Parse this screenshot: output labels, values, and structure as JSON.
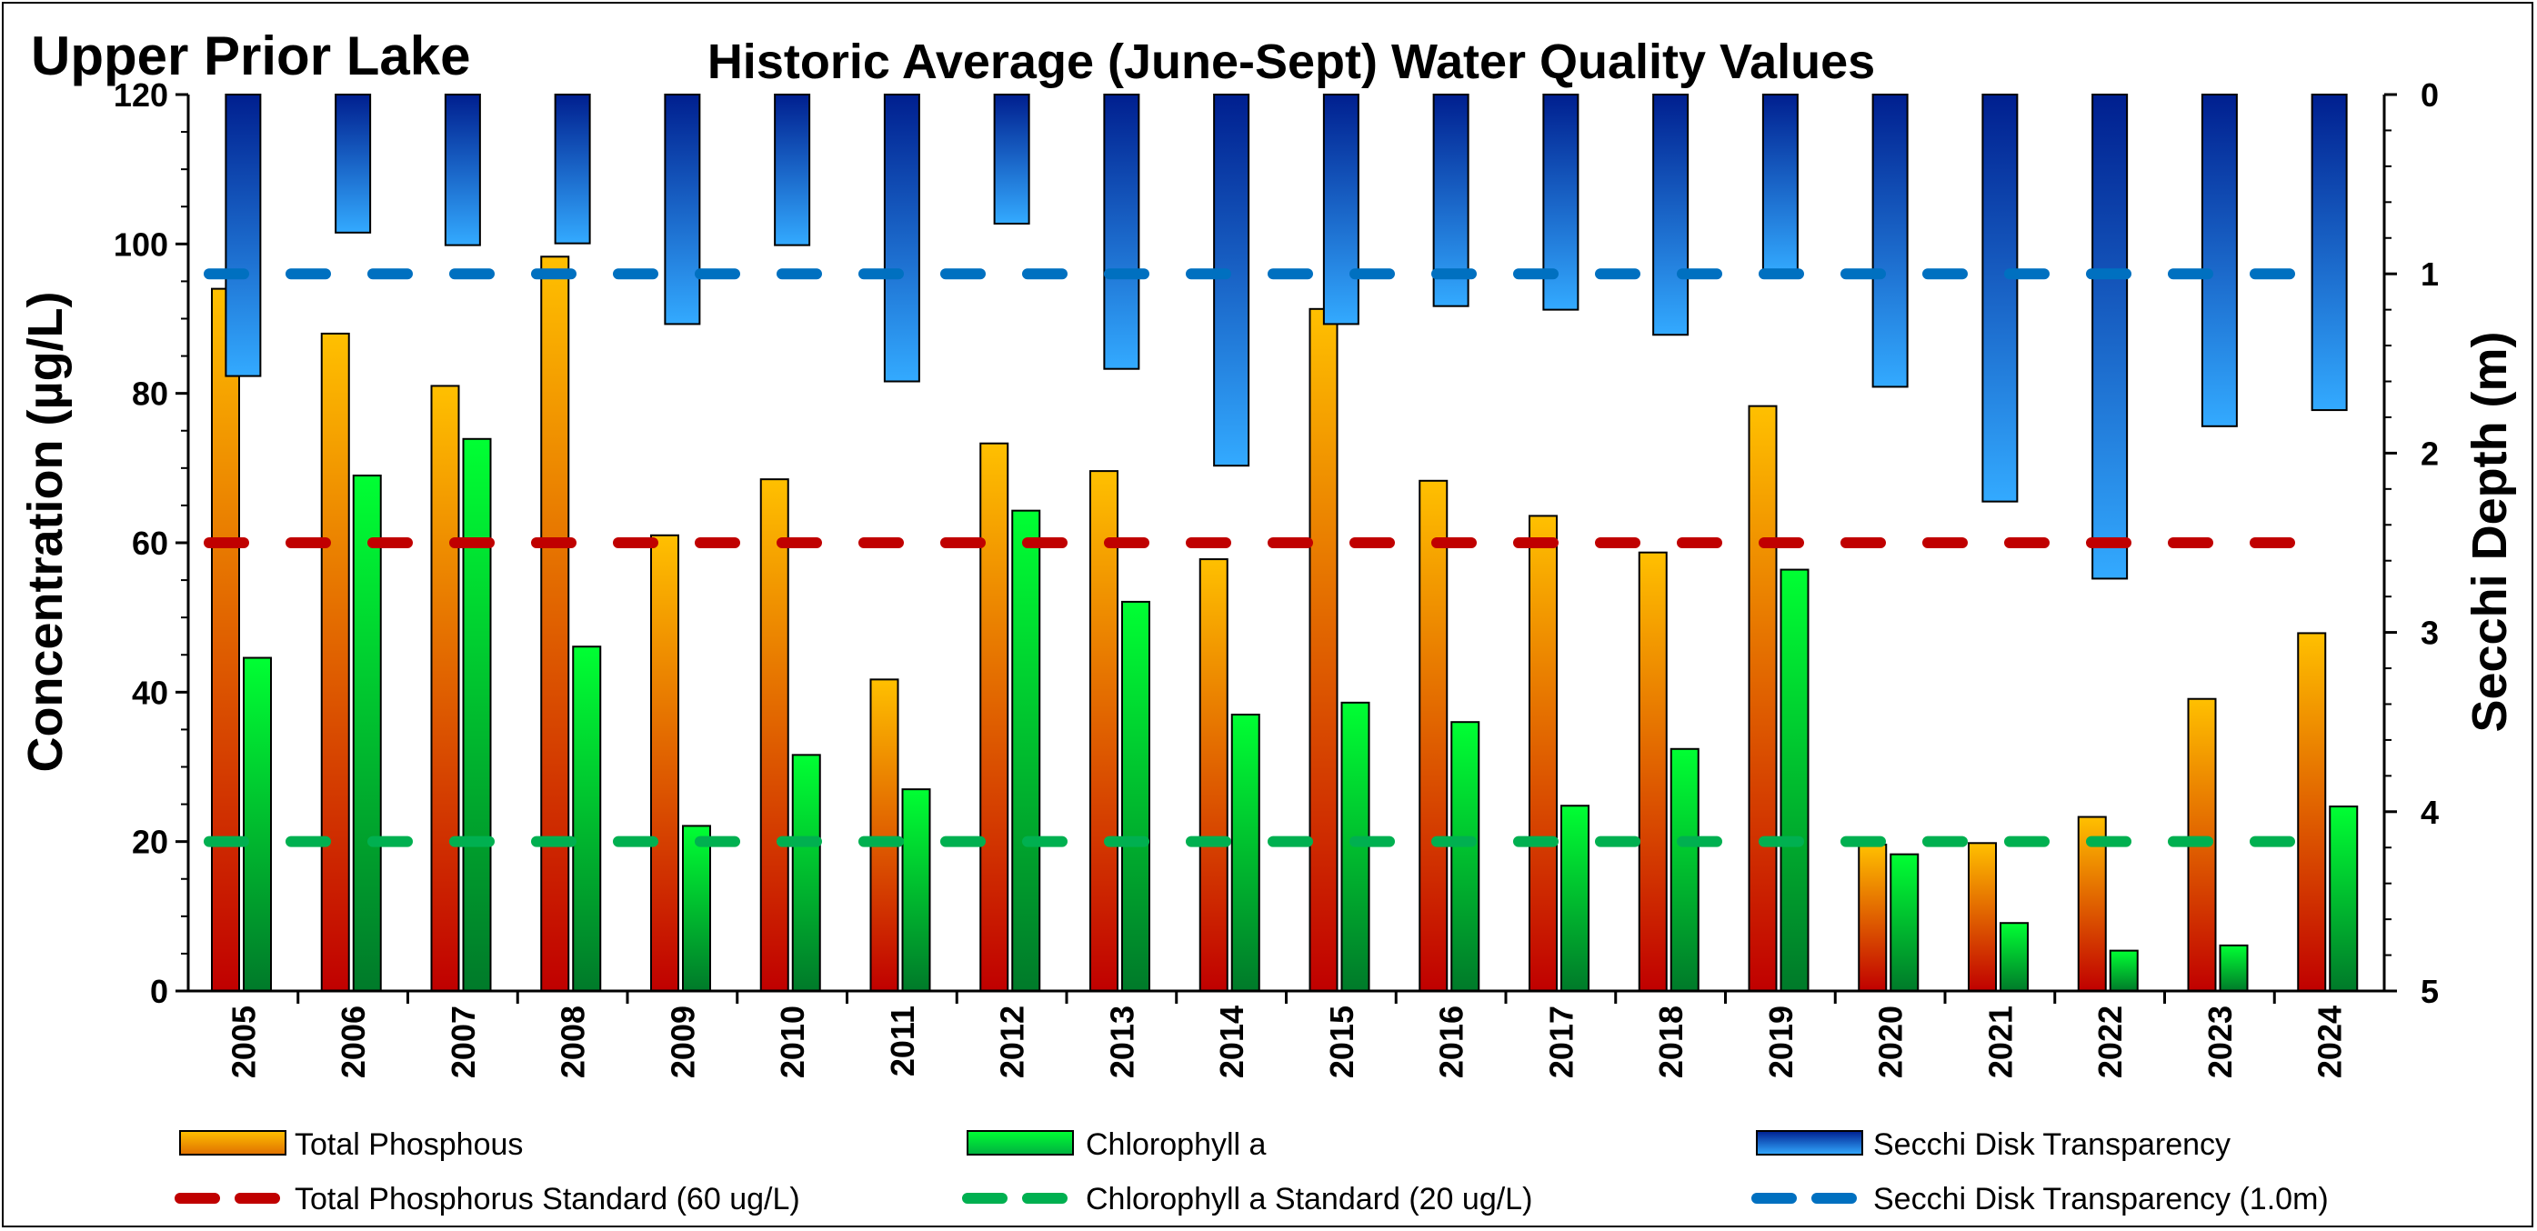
{
  "chart_data": {
    "type": "bar",
    "title": "Historic Average (June-Sept) Water Quality Values",
    "lake_name": "Upper Prior Lake",
    "categories": [
      "2005",
      "2006",
      "2007",
      "2008",
      "2009",
      "2010",
      "2011",
      "2012",
      "2013",
      "2014",
      "2015",
      "2016",
      "2017",
      "2018",
      "2019",
      "2020",
      "2021",
      "2022",
      "2023",
      "2024"
    ],
    "ylabel": "Concentration (µg/L)",
    "y2label": "Secchi Depth (m)",
    "ylim": [
      0,
      120
    ],
    "y2lim": [
      0,
      5
    ],
    "y2_inverted": true,
    "yticks": [
      "0",
      "20",
      "40",
      "60",
      "80",
      "100",
      "120"
    ],
    "y2ticks": [
      "0",
      "1",
      "2",
      "3",
      "4",
      "5"
    ],
    "series": [
      {
        "name": "Total Phosphous",
        "axis": "left",
        "color_top": "#FFC000",
        "color_bottom": "#C00000",
        "values": [
          94,
          88,
          81,
          98.3,
          61,
          68.5,
          41.7,
          73.3,
          69.6,
          57.8,
          91.3,
          68.3,
          63.6,
          58.7,
          78.3,
          19.6,
          19.8,
          23.3,
          39.1,
          47.9
        ]
      },
      {
        "name": "Chlorophyll a",
        "axis": "left",
        "color_top": "#00FF33",
        "color_bottom": "#007A2A",
        "values": [
          44.6,
          69,
          73.9,
          46.1,
          22.1,
          31.6,
          27,
          64.3,
          52.1,
          37,
          38.6,
          36,
          24.8,
          32.4,
          56.4,
          18.3,
          9.1,
          5.4,
          6.1,
          24.7
        ]
      },
      {
        "name": "Secchi Disk Transparency",
        "axis": "right",
        "color_top": "#001F8F",
        "color_bottom": "#33AAFF",
        "values": [
          1.57,
          0.77,
          0.84,
          0.83,
          1.28,
          0.84,
          1.6,
          0.72,
          1.53,
          2.07,
          1.28,
          1.18,
          1.2,
          1.34,
          1.0,
          1.63,
          2.27,
          2.7,
          1.85,
          1.76
        ]
      }
    ],
    "reference_lines": [
      {
        "name": "Total Phosphorus Standard (60 ug/L)",
        "axis": "left",
        "value": 60,
        "color": "#C00000"
      },
      {
        "name": "Chlorophyll a Standard (20 ug/L)",
        "axis": "left",
        "value": 20,
        "color": "#00B050"
      },
      {
        "name": "Secchi Disk Transparency (1.0m)",
        "axis": "right",
        "value": 1.0,
        "color": "#0070C0"
      }
    ],
    "legend_position": "bottom",
    "grid": false
  }
}
